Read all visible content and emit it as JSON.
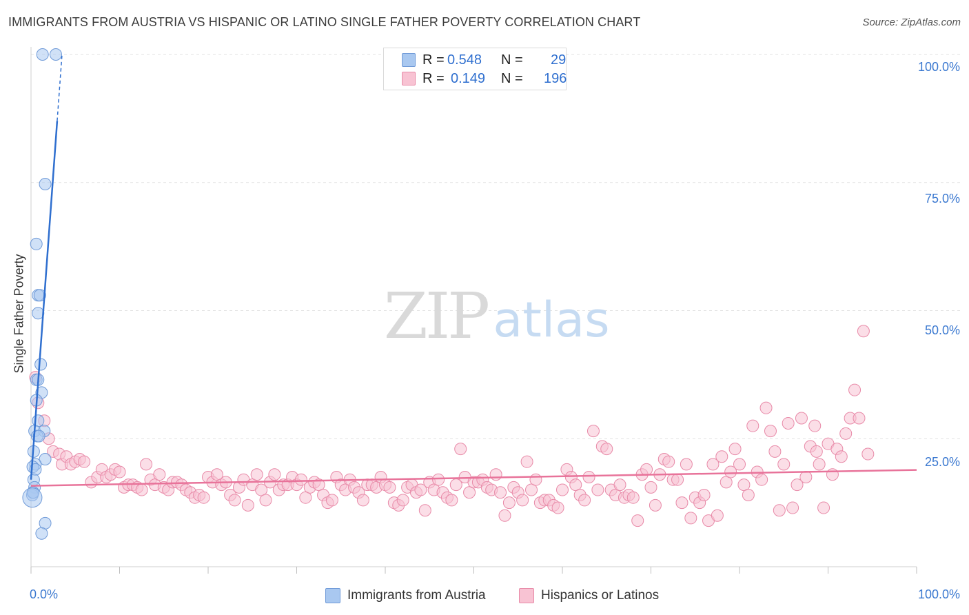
{
  "title": "IMMIGRANTS FROM AUSTRIA VS HISPANIC OR LATINO SINGLE FATHER POVERTY CORRELATION CHART",
  "source": "Source: ZipAtlas.com",
  "watermark": {
    "zip": "ZIP",
    "atlas": "atlas"
  },
  "legend": {
    "rows": [
      {
        "r_label": "R =",
        "r_value": "0.548",
        "n_label": "N =",
        "n_value": "29",
        "color": "#a9c8f0",
        "border": "#6f9ad8"
      },
      {
        "r_label": "R =",
        "r_value": "0.149",
        "n_label": "N =",
        "n_value": "196",
        "color": "#f8c3d3",
        "border": "#e88aa8"
      }
    ]
  },
  "bottom_legend": [
    {
      "label": "Immigrants from Austria",
      "color": "#a9c8f0",
      "border": "#6f9ad8"
    },
    {
      "label": "Hispanics or Latinos",
      "color": "#f8c3d3",
      "border": "#e88aa8"
    }
  ],
  "chart_data": {
    "type": "scatter",
    "title": "IMMIGRANTS FROM AUSTRIA VS HISPANIC OR LATINO SINGLE FATHER POVERTY CORRELATION CHART",
    "xlabel": "",
    "ylabel": "Single Father Poverty",
    "xlim": [
      0,
      100
    ],
    "ylim": [
      0,
      100
    ],
    "x_tick_labels": [
      "0.0%",
      "100.0%"
    ],
    "y_tick_labels": [
      "25.0%",
      "50.0%",
      "75.0%",
      "100.0%"
    ],
    "y_ticks": [
      25,
      50,
      75,
      100
    ],
    "grid": true,
    "legend_position": "top-center",
    "series": [
      {
        "name": "Immigrants from Austria",
        "color": "#a9c8f0",
        "stroke": "#6f9ad8",
        "trend_color": "#2f6fcf",
        "trend": {
          "x0": 0,
          "y0": 17,
          "x1": 3.5,
          "y1": 100
        },
        "points": [
          [
            1.3,
            100
          ],
          [
            2.8,
            100
          ],
          [
            1.6,
            74.7
          ],
          [
            0.6,
            63
          ],
          [
            0.8,
            53
          ],
          [
            1.0,
            53
          ],
          [
            0.8,
            49.5
          ],
          [
            1.1,
            39.5
          ],
          [
            0.6,
            36.5
          ],
          [
            0.8,
            36.5
          ],
          [
            1.2,
            34
          ],
          [
            0.6,
            32.5
          ],
          [
            0.8,
            28.5
          ],
          [
            0.4,
            26.5
          ],
          [
            1.5,
            26.5
          ],
          [
            0.7,
            25.5
          ],
          [
            0.9,
            25.5
          ],
          [
            1.6,
            21
          ],
          [
            0.3,
            22.5
          ],
          [
            0.5,
            20
          ],
          [
            0.2,
            19.5
          ],
          [
            0.5,
            19
          ],
          [
            0.3,
            17
          ],
          [
            0.4,
            15.5
          ],
          [
            0.2,
            14.5
          ],
          [
            0.15,
            14
          ],
          [
            0.25,
            14.5
          ],
          [
            1.6,
            8.5
          ],
          [
            1.2,
            6.5
          ]
        ]
      },
      {
        "name": "Hispanics or Latinos",
        "color": "#f8c3d3",
        "stroke": "#e88aa8",
        "trend_color": "#e8739a",
        "trend": {
          "x0": 0,
          "y0": 15.8,
          "x1": 100,
          "y1": 18.9
        },
        "points": [
          [
            0.5,
            37
          ],
          [
            0.8,
            32
          ],
          [
            1.5,
            28.5
          ],
          [
            2.0,
            25
          ],
          [
            2.5,
            22.5
          ],
          [
            3.2,
            22
          ],
          [
            3.5,
            20
          ],
          [
            4.0,
            21.5
          ],
          [
            4.5,
            20
          ],
          [
            5.0,
            20.5
          ],
          [
            5.5,
            21
          ],
          [
            6.0,
            20.5
          ],
          [
            6.8,
            16.5
          ],
          [
            7.5,
            17.5
          ],
          [
            8.0,
            19
          ],
          [
            8.5,
            17.5
          ],
          [
            9.0,
            18
          ],
          [
            9.5,
            19
          ],
          [
            10.0,
            18.5
          ],
          [
            10.5,
            15.5
          ],
          [
            11.0,
            16
          ],
          [
            11.5,
            16
          ],
          [
            12.0,
            15.5
          ],
          [
            12.5,
            15
          ],
          [
            13.0,
            20
          ],
          [
            13.5,
            17
          ],
          [
            14.0,
            16
          ],
          [
            14.5,
            18
          ],
          [
            15.0,
            15.5
          ],
          [
            15.5,
            15
          ],
          [
            16.0,
            16.5
          ],
          [
            16.5,
            16.5
          ],
          [
            17.0,
            16
          ],
          [
            17.5,
            15
          ],
          [
            18.0,
            14.5
          ],
          [
            18.5,
            13.5
          ],
          [
            19.0,
            14
          ],
          [
            19.5,
            13.5
          ],
          [
            20.0,
            17.5
          ],
          [
            20.5,
            16.5
          ],
          [
            21.0,
            18
          ],
          [
            21.5,
            16
          ],
          [
            22.0,
            16.5
          ],
          [
            22.5,
            14
          ],
          [
            23.0,
            13
          ],
          [
            23.5,
            15.5
          ],
          [
            24.0,
            17
          ],
          [
            24.5,
            12
          ],
          [
            25.0,
            16
          ],
          [
            25.5,
            18
          ],
          [
            26.0,
            15
          ],
          [
            26.5,
            13
          ],
          [
            27.0,
            16.5
          ],
          [
            27.5,
            18
          ],
          [
            28.0,
            15
          ],
          [
            28.5,
            16
          ],
          [
            29.0,
            16
          ],
          [
            29.5,
            17.5
          ],
          [
            30.0,
            16
          ],
          [
            30.5,
            17
          ],
          [
            31.0,
            13.5
          ],
          [
            31.5,
            15.5
          ],
          [
            32.0,
            16.5
          ],
          [
            32.5,
            16
          ],
          [
            33.0,
            14
          ],
          [
            33.5,
            12.5
          ],
          [
            34.0,
            13
          ],
          [
            34.5,
            17.5
          ],
          [
            35.0,
            16
          ],
          [
            35.5,
            15
          ],
          [
            36.0,
            17
          ],
          [
            36.5,
            15.5
          ],
          [
            37.0,
            14.5
          ],
          [
            37.5,
            13
          ],
          [
            38.0,
            16
          ],
          [
            38.5,
            16
          ],
          [
            39.0,
            15.5
          ],
          [
            39.5,
            17.5
          ],
          [
            40.0,
            16
          ],
          [
            40.5,
            15.5
          ],
          [
            41.0,
            12.5
          ],
          [
            41.5,
            12
          ],
          [
            42.0,
            13
          ],
          [
            42.5,
            15.5
          ],
          [
            43.0,
            16
          ],
          [
            43.5,
            14.5
          ],
          [
            44.0,
            15
          ],
          [
            44.5,
            11
          ],
          [
            45.0,
            16.5
          ],
          [
            45.5,
            15
          ],
          [
            46.0,
            17
          ],
          [
            46.5,
            14.5
          ],
          [
            47.0,
            13.5
          ],
          [
            47.5,
            13
          ],
          [
            48.0,
            16
          ],
          [
            48.5,
            23
          ],
          [
            49.0,
            17.5
          ],
          [
            49.5,
            14.5
          ],
          [
            50.0,
            16.5
          ],
          [
            50.5,
            16.5
          ],
          [
            51.0,
            17
          ],
          [
            51.5,
            15.5
          ],
          [
            52.0,
            15
          ],
          [
            52.5,
            18
          ],
          [
            53.0,
            14.5
          ],
          [
            53.5,
            10
          ],
          [
            54.0,
            12.5
          ],
          [
            54.5,
            15.5
          ],
          [
            55.0,
            14.5
          ],
          [
            55.5,
            13
          ],
          [
            56.0,
            20.5
          ],
          [
            56.5,
            15
          ],
          [
            57.0,
            17
          ],
          [
            57.5,
            12.5
          ],
          [
            58.0,
            13
          ],
          [
            58.5,
            13
          ],
          [
            59.0,
            12
          ],
          [
            59.5,
            11.5
          ],
          [
            60.0,
            15
          ],
          [
            60.5,
            19
          ],
          [
            61.0,
            17.5
          ],
          [
            61.5,
            16
          ],
          [
            62.0,
            14
          ],
          [
            62.5,
            13
          ],
          [
            63.0,
            17.5
          ],
          [
            63.5,
            26.5
          ],
          [
            64.0,
            15
          ],
          [
            64.5,
            23.5
          ],
          [
            65.0,
            23
          ],
          [
            65.5,
            15
          ],
          [
            66.0,
            14
          ],
          [
            66.5,
            16
          ],
          [
            67.0,
            13.5
          ],
          [
            67.5,
            14
          ],
          [
            68.0,
            13.5
          ],
          [
            68.5,
            9
          ],
          [
            69.0,
            18
          ],
          [
            69.5,
            19
          ],
          [
            70.0,
            15.5
          ],
          [
            70.5,
            12
          ],
          [
            71.0,
            18
          ],
          [
            71.5,
            21
          ],
          [
            72.0,
            20.5
          ],
          [
            72.5,
            17
          ],
          [
            73.0,
            17
          ],
          [
            73.5,
            12.5
          ],
          [
            74.0,
            20
          ],
          [
            74.5,
            9.5
          ],
          [
            75.0,
            13.5
          ],
          [
            75.5,
            12.5
          ],
          [
            76.0,
            14
          ],
          [
            76.5,
            9
          ],
          [
            77.0,
            20
          ],
          [
            77.5,
            10
          ],
          [
            78.0,
            21.5
          ],
          [
            78.5,
            16.5
          ],
          [
            79.0,
            18.5
          ],
          [
            79.5,
            23
          ],
          [
            80.0,
            20
          ],
          [
            80.5,
            16
          ],
          [
            81.0,
            14
          ],
          [
            81.5,
            27.5
          ],
          [
            82.0,
            18.5
          ],
          [
            82.5,
            17
          ],
          [
            83.0,
            31
          ],
          [
            83.5,
            26.5
          ],
          [
            84.0,
            22.5
          ],
          [
            84.5,
            11
          ],
          [
            85.0,
            20
          ],
          [
            85.5,
            28
          ],
          [
            86.0,
            11.5
          ],
          [
            86.5,
            16
          ],
          [
            87.0,
            29
          ],
          [
            87.5,
            17.5
          ],
          [
            88.0,
            23.5
          ],
          [
            88.5,
            27.5
          ],
          [
            89.0,
            20
          ],
          [
            89.5,
            11.5
          ],
          [
            90.0,
            24
          ],
          [
            90.5,
            18
          ],
          [
            91.0,
            23
          ],
          [
            91.5,
            21.5
          ],
          [
            92.0,
            26
          ],
          [
            92.5,
            29
          ],
          [
            93.0,
            34.5
          ],
          [
            93.5,
            29
          ],
          [
            94.0,
            46
          ],
          [
            88.7,
            22.5
          ],
          [
            94.5,
            22
          ]
        ]
      }
    ]
  }
}
